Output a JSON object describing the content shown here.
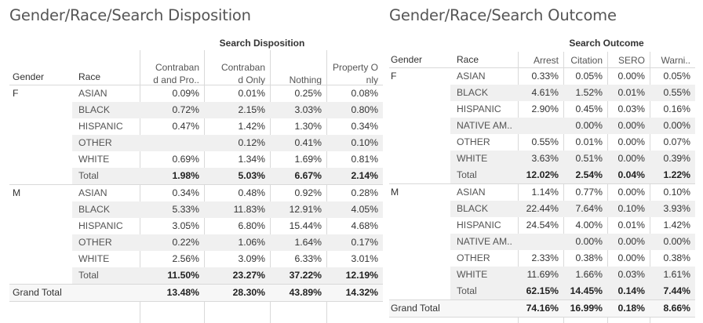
{
  "left": {
    "title": "Gender/Race/Search Disposition",
    "super_header": "Search Disposition",
    "row_headers": [
      "Gender",
      "Race"
    ],
    "columns": [
      "Contraband and Pro..",
      "Contraband Only",
      "Nothing",
      "Property Only"
    ],
    "groups": [
      {
        "gender": "F",
        "rows": [
          {
            "race": "ASIAN",
            "values": [
              "0.09%",
              "0.01%",
              "0.25%",
              "0.08%"
            ]
          },
          {
            "race": "BLACK",
            "values": [
              "0.72%",
              "2.15%",
              "3.03%",
              "0.80%"
            ]
          },
          {
            "race": "HISPANIC",
            "values": [
              "0.47%",
              "1.42%",
              "1.30%",
              "0.34%"
            ]
          },
          {
            "race": "OTHER",
            "values": [
              "",
              "0.12%",
              "0.41%",
              "0.10%"
            ]
          },
          {
            "race": "WHITE",
            "values": [
              "0.69%",
              "1.34%",
              "1.69%",
              "0.81%"
            ]
          }
        ],
        "total_label": "Total",
        "total": [
          "1.98%",
          "5.03%",
          "6.67%",
          "2.14%"
        ]
      },
      {
        "gender": "M",
        "rows": [
          {
            "race": "ASIAN",
            "values": [
              "0.34%",
              "0.48%",
              "0.92%",
              "0.28%"
            ]
          },
          {
            "race": "BLACK",
            "values": [
              "5.33%",
              "11.83%",
              "12.91%",
              "4.05%"
            ]
          },
          {
            "race": "HISPANIC",
            "values": [
              "3.05%",
              "6.80%",
              "15.44%",
              "4.68%"
            ]
          },
          {
            "race": "OTHER",
            "values": [
              "0.22%",
              "1.06%",
              "1.64%",
              "0.17%"
            ]
          },
          {
            "race": "WHITE",
            "values": [
              "2.56%",
              "3.09%",
              "6.33%",
              "3.01%"
            ]
          }
        ],
        "total_label": "Total",
        "total": [
          "11.50%",
          "23.27%",
          "37.22%",
          "12.19%"
        ]
      }
    ],
    "grand_total_label": "Grand Total",
    "grand_total": [
      "13.48%",
      "28.30%",
      "43.89%",
      "14.32%"
    ]
  },
  "right": {
    "title": "Gender/Race/Search Outcome",
    "super_header": "Search Outcome",
    "row_headers": [
      "Gender",
      "Race"
    ],
    "columns": [
      "Arrest",
      "Citation",
      "SERO",
      "Warni.."
    ],
    "groups": [
      {
        "gender": "F",
        "rows": [
          {
            "race": "ASIAN",
            "values": [
              "0.33%",
              "0.05%",
              "0.00%",
              "0.05%"
            ]
          },
          {
            "race": "BLACK",
            "values": [
              "4.61%",
              "1.52%",
              "0.01%",
              "0.55%"
            ]
          },
          {
            "race": "HISPANIC",
            "values": [
              "2.90%",
              "0.45%",
              "0.03%",
              "0.16%"
            ]
          },
          {
            "race": "NATIVE AM..",
            "values": [
              "",
              "0.00%",
              "0.00%",
              "0.00%"
            ]
          },
          {
            "race": "OTHER",
            "values": [
              "0.55%",
              "0.01%",
              "0.00%",
              "0.07%"
            ]
          },
          {
            "race": "WHITE",
            "values": [
              "3.63%",
              "0.51%",
              "0.00%",
              "0.39%"
            ]
          }
        ],
        "total_label": "Total",
        "total": [
          "12.02%",
          "2.54%",
          "0.04%",
          "1.22%"
        ]
      },
      {
        "gender": "M",
        "rows": [
          {
            "race": "ASIAN",
            "values": [
              "1.14%",
              "0.77%",
              "0.00%",
              "0.10%"
            ]
          },
          {
            "race": "BLACK",
            "values": [
              "22.44%",
              "7.64%",
              "0.10%",
              "3.93%"
            ]
          },
          {
            "race": "HISPANIC",
            "values": [
              "24.54%",
              "4.00%",
              "0.01%",
              "1.42%"
            ]
          },
          {
            "race": "NATIVE AM..",
            "values": [
              "",
              "0.00%",
              "0.00%",
              "0.00%"
            ]
          },
          {
            "race": "OTHER",
            "values": [
              "2.33%",
              "0.38%",
              "0.00%",
              "0.38%"
            ]
          },
          {
            "race": "WHITE",
            "values": [
              "11.69%",
              "1.66%",
              "0.03%",
              "1.61%"
            ]
          }
        ],
        "total_label": "Total",
        "total": [
          "62.15%",
          "14.45%",
          "0.14%",
          "7.44%"
        ]
      }
    ],
    "grand_total_label": "Grand Total",
    "grand_total": [
      "74.16%",
      "16.99%",
      "0.18%",
      "8.66%"
    ]
  },
  "chart_data": [
    {
      "type": "table",
      "title": "Gender/Race/Search Disposition",
      "column_group": "Search Disposition",
      "row_dimensions": [
        "Gender",
        "Race"
      ],
      "columns": [
        "Contraband and Pro..",
        "Contraband Only",
        "Nothing",
        "Property Only"
      ],
      "rows": [
        {
          "gender": "F",
          "race": "ASIAN",
          "values": [
            0.09,
            0.01,
            0.25,
            0.08
          ]
        },
        {
          "gender": "F",
          "race": "BLACK",
          "values": [
            0.72,
            2.15,
            3.03,
            0.8
          ]
        },
        {
          "gender": "F",
          "race": "HISPANIC",
          "values": [
            0.47,
            1.42,
            1.3,
            0.34
          ]
        },
        {
          "gender": "F",
          "race": "OTHER",
          "values": [
            null,
            0.12,
            0.41,
            0.1
          ]
        },
        {
          "gender": "F",
          "race": "WHITE",
          "values": [
            0.69,
            1.34,
            1.69,
            0.81
          ]
        },
        {
          "gender": "F",
          "race": "Total",
          "values": [
            1.98,
            5.03,
            6.67,
            2.14
          ]
        },
        {
          "gender": "M",
          "race": "ASIAN",
          "values": [
            0.34,
            0.48,
            0.92,
            0.28
          ]
        },
        {
          "gender": "M",
          "race": "BLACK",
          "values": [
            5.33,
            11.83,
            12.91,
            4.05
          ]
        },
        {
          "gender": "M",
          "race": "HISPANIC",
          "values": [
            3.05,
            6.8,
            15.44,
            4.68
          ]
        },
        {
          "gender": "M",
          "race": "OTHER",
          "values": [
            0.22,
            1.06,
            1.64,
            0.17
          ]
        },
        {
          "gender": "M",
          "race": "WHITE",
          "values": [
            2.56,
            3.09,
            6.33,
            3.01
          ]
        },
        {
          "gender": "M",
          "race": "Total",
          "values": [
            11.5,
            23.27,
            37.22,
            12.19
          ]
        },
        {
          "gender": "Grand Total",
          "race": "",
          "values": [
            13.48,
            28.3,
            43.89,
            14.32
          ]
        }
      ]
    },
    {
      "type": "table",
      "title": "Gender/Race/Search Outcome",
      "column_group": "Search Outcome",
      "row_dimensions": [
        "Gender",
        "Race"
      ],
      "columns": [
        "Arrest",
        "Citation",
        "SERO",
        "Warni.."
      ],
      "rows": [
        {
          "gender": "F",
          "race": "ASIAN",
          "values": [
            0.33,
            0.05,
            0.0,
            0.05
          ]
        },
        {
          "gender": "F",
          "race": "BLACK",
          "values": [
            4.61,
            1.52,
            0.01,
            0.55
          ]
        },
        {
          "gender": "F",
          "race": "HISPANIC",
          "values": [
            2.9,
            0.45,
            0.03,
            0.16
          ]
        },
        {
          "gender": "F",
          "race": "NATIVE AM..",
          "values": [
            null,
            0.0,
            0.0,
            0.0
          ]
        },
        {
          "gender": "F",
          "race": "OTHER",
          "values": [
            0.55,
            0.01,
            0.0,
            0.07
          ]
        },
        {
          "gender": "F",
          "race": "WHITE",
          "values": [
            3.63,
            0.51,
            0.0,
            0.39
          ]
        },
        {
          "gender": "F",
          "race": "Total",
          "values": [
            12.02,
            2.54,
            0.04,
            1.22
          ]
        },
        {
          "gender": "M",
          "race": "ASIAN",
          "values": [
            1.14,
            0.77,
            0.0,
            0.1
          ]
        },
        {
          "gender": "M",
          "race": "BLACK",
          "values": [
            22.44,
            7.64,
            0.1,
            3.93
          ]
        },
        {
          "gender": "M",
          "race": "HISPANIC",
          "values": [
            24.54,
            4.0,
            0.01,
            1.42
          ]
        },
        {
          "gender": "M",
          "race": "NATIVE AM..",
          "values": [
            null,
            0.0,
            0.0,
            0.0
          ]
        },
        {
          "gender": "M",
          "race": "OTHER",
          "values": [
            2.33,
            0.38,
            0.0,
            0.38
          ]
        },
        {
          "gender": "M",
          "race": "WHITE",
          "values": [
            11.69,
            1.66,
            0.03,
            1.61
          ]
        },
        {
          "gender": "M",
          "race": "Total",
          "values": [
            62.15,
            14.45,
            0.14,
            7.44
          ]
        },
        {
          "gender": "Grand Total",
          "race": "",
          "values": [
            74.16,
            16.99,
            0.18,
            8.66
          ]
        }
      ]
    }
  ]
}
